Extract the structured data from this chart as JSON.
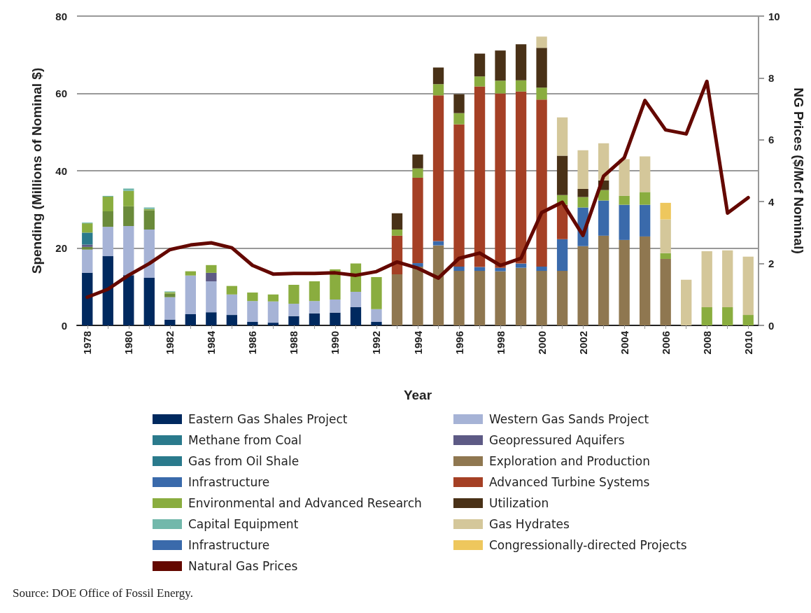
{
  "chart_data": {
    "type": "bar",
    "stacked": true,
    "xlabel": "Year",
    "ylabel": "Spending (Millions of Nominal $)",
    "y2label": "NG Prices ($/Mcf Nominal)",
    "categories": [
      "1978",
      null,
      "1980",
      null,
      "1982",
      null,
      "1984",
      null,
      "1986",
      null,
      "1988",
      null,
      "1990",
      null,
      "1992",
      null,
      "1994",
      null,
      "1996",
      null,
      "1998",
      null,
      "2000",
      null,
      "2002",
      null,
      "2004",
      null,
      "2006",
      null,
      "2008",
      null,
      "2010"
    ],
    "ylim": [
      0,
      80
    ],
    "yticks": [
      0,
      20,
      40,
      60,
      80
    ],
    "y2lim": [
      0,
      10
    ],
    "y2ticks": [
      0,
      2,
      4,
      6,
      8,
      10
    ],
    "grid": "y",
    "legend": "bottom",
    "annotations": [
      "Source: DOE Office of Fossil Energy."
    ],
    "series": [
      {
        "name": "Eastern Gas Shales Project",
        "color": "#00295f",
        "values": [
          13.6,
          17.9,
          13.0,
          12.3,
          1.5,
          2.9,
          3.4,
          2.7,
          0.9,
          0.7,
          2.4,
          3.1,
          3.3,
          4.7,
          0.9,
          null,
          null,
          null,
          null,
          null,
          null,
          null,
          null,
          null,
          null,
          null,
          null,
          null,
          null,
          null,
          null,
          null,
          null
        ]
      },
      {
        "name": "Western Gas Sands Project",
        "color": "#a6b3d6",
        "values": [
          6.0,
          7.6,
          12.7,
          12.5,
          5.8,
          10.0,
          8.0,
          5.3,
          5.4,
          5.5,
          3.2,
          3.2,
          3.4,
          4.0,
          3.3,
          null,
          null,
          null,
          null,
          null,
          null,
          null,
          null,
          null,
          null,
          null,
          null,
          null,
          null,
          null,
          null,
          null,
          null
        ]
      },
      {
        "color": "#6a8a3a",
        "values": [
          0.7,
          4.0,
          5.1,
          5.0,
          0.9,
          null,
          null,
          null,
          null,
          null,
          null,
          null,
          null,
          null,
          null,
          null,
          null,
          null,
          null,
          null,
          null,
          null,
          null,
          null,
          null,
          null,
          null,
          null,
          null,
          null,
          null,
          null,
          null
        ]
      },
      {
        "name": "Methane from Coal",
        "color": "#2a7a8c",
        "values": [
          null,
          null,
          null,
          null,
          null,
          null,
          null,
          null,
          null,
          null,
          null,
          null,
          null,
          null,
          null,
          null,
          null,
          null,
          null,
          null,
          null,
          null,
          null,
          null,
          null,
          null,
          null,
          null,
          null,
          null,
          null,
          null,
          null
        ]
      },
      {
        "name": "Geopressured Aquifers",
        "color": "#5d5a85",
        "values": [
          0.6,
          null,
          null,
          null,
          null,
          null,
          2.2,
          null,
          null,
          null,
          null,
          null,
          null,
          null,
          null,
          null,
          null,
          null,
          null,
          null,
          null,
          null,
          null,
          null,
          null,
          null,
          null,
          null,
          null,
          null,
          null,
          null,
          null
        ]
      },
      {
        "name": "Gas from Oil Shale",
        "color": "#2a7a8c",
        "values": [
          3.1,
          null,
          null,
          null,
          null,
          null,
          null,
          null,
          null,
          null,
          null,
          null,
          null,
          null,
          null,
          null,
          null,
          null,
          null,
          null,
          null,
          null,
          null,
          null,
          null,
          null,
          null,
          null,
          null,
          null,
          null,
          null,
          null
        ]
      },
      {
        "name": "Exploration and Production",
        "color": "#8f7750",
        "values": [
          null,
          null,
          null,
          null,
          null,
          null,
          null,
          null,
          null,
          null,
          null,
          null,
          null,
          null,
          null,
          13.2,
          15.2,
          20.7,
          14.1,
          14.1,
          14.0,
          14.9,
          14.1,
          14.1,
          20.5,
          23.2,
          22.1,
          23.0,
          17.2,
          null,
          null,
          null,
          null
        ]
      },
      {
        "name": "Infrastructure",
        "color": "#3a6aab",
        "values": [
          null,
          null,
          null,
          null,
          null,
          null,
          null,
          null,
          null,
          null,
          null,
          null,
          null,
          null,
          null,
          null,
          0.9,
          1.1,
          1.1,
          1.0,
          0.9,
          1.1,
          1.1,
          8.2,
          10.0,
          9.1,
          9.1,
          8.2,
          null,
          null,
          null,
          null,
          null
        ]
      },
      {
        "name": "Advanced Turbine Systems",
        "color": "#a54025",
        "values": [
          null,
          null,
          null,
          null,
          null,
          null,
          null,
          null,
          null,
          null,
          null,
          null,
          null,
          null,
          null,
          10.0,
          22.1,
          37.7,
          36.8,
          46.7,
          45.1,
          44.5,
          43.2,
          8.9,
          null,
          null,
          null,
          null,
          null,
          null,
          null,
          null,
          null
        ]
      },
      {
        "name": "Environmental and Advanced Research",
        "color": "#8aad3f",
        "values": [
          2.4,
          3.8,
          4.0,
          0.3,
          0.4,
          1.1,
          2.0,
          2.2,
          2.2,
          1.8,
          4.9,
          5.1,
          7.8,
          7.3,
          8.3,
          1.6,
          2.4,
          2.9,
          2.9,
          2.6,
          3.3,
          2.9,
          3.1,
          2.5,
          2.7,
          2.7,
          2.3,
          3.3,
          1.5,
          null,
          4.7,
          4.7,
          2.7
        ]
      },
      {
        "name": "Utilization",
        "color": "#493117",
        "values": [
          null,
          null,
          null,
          null,
          null,
          null,
          null,
          null,
          null,
          null,
          null,
          null,
          null,
          null,
          null,
          4.2,
          3.6,
          4.3,
          4.9,
          5.9,
          7.8,
          9.3,
          10.3,
          10.2,
          2.1,
          2.5,
          null,
          null,
          null,
          null,
          null,
          null,
          null
        ]
      },
      {
        "name": "Capital Equipment",
        "color": "#72b8ab",
        "values": [
          0.2,
          0.2,
          0.6,
          0.4,
          0.2,
          null,
          null,
          null,
          null,
          null,
          null,
          null,
          null,
          null,
          null,
          null,
          null,
          null,
          null,
          null,
          null,
          null,
          null,
          null,
          null,
          null,
          null,
          null,
          null,
          null,
          null,
          null,
          null
        ]
      },
      {
        "name": "Gas Hydrates",
        "color": "#d4c79a",
        "values": [
          null,
          null,
          null,
          null,
          null,
          null,
          null,
          null,
          null,
          null,
          null,
          null,
          null,
          null,
          null,
          null,
          null,
          null,
          null,
          null,
          null,
          null,
          2.9,
          9.9,
          10.0,
          9.6,
          9.5,
          9.2,
          8.7,
          11.8,
          14.5,
          14.7,
          15.1
        ]
      },
      {
        "name": "Infrastructure",
        "color": "#3a6aab",
        "values": [
          null,
          null,
          null,
          null,
          null,
          null,
          null,
          null,
          null,
          null,
          null,
          null,
          null,
          null,
          null,
          null,
          null,
          null,
          null,
          null,
          null,
          null,
          null,
          null,
          null,
          null,
          null,
          null,
          null,
          null,
          null,
          null,
          null
        ]
      },
      {
        "name": "Congressionally-directed Projects",
        "color": "#eec75d",
        "values": [
          null,
          null,
          null,
          null,
          null,
          null,
          null,
          null,
          null,
          null,
          null,
          null,
          null,
          null,
          null,
          null,
          null,
          null,
          null,
          null,
          null,
          null,
          null,
          null,
          null,
          null,
          null,
          null,
          4.3,
          null,
          null,
          null,
          null
        ]
      },
      {
        "name": "Natural Gas Prices",
        "type": "line",
        "axis": "y2",
        "color": "#640800",
        "line_style": "solid",
        "values": [
          0.91,
          1.17,
          1.62,
          2.0,
          2.45,
          2.6,
          2.67,
          2.51,
          1.94,
          1.66,
          1.68,
          1.68,
          1.7,
          1.62,
          1.74,
          2.05,
          1.85,
          1.53,
          2.17,
          2.34,
          1.94,
          2.17,
          3.65,
          3.98,
          2.91,
          4.83,
          5.42,
          7.27,
          6.32,
          6.19,
          7.89,
          3.63,
          4.13
        ]
      }
    ]
  }
}
